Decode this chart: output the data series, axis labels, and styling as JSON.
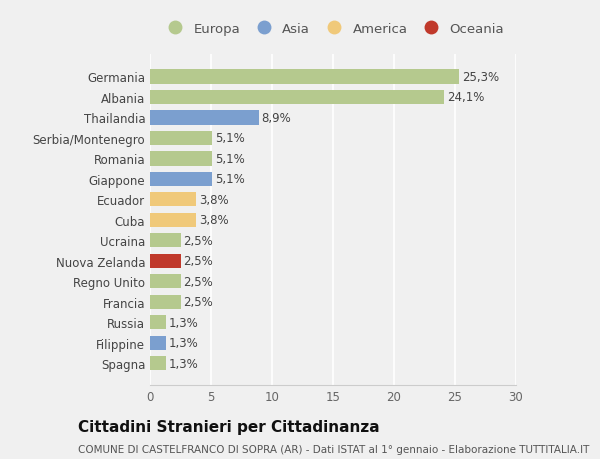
{
  "categories": [
    "Germania",
    "Albania",
    "Thailandia",
    "Serbia/Montenegro",
    "Romania",
    "Giappone",
    "Ecuador",
    "Cuba",
    "Ucraina",
    "Nuova Zelanda",
    "Regno Unito",
    "Francia",
    "Russia",
    "Filippine",
    "Spagna"
  ],
  "values": [
    25.3,
    24.1,
    8.9,
    5.1,
    5.1,
    5.1,
    3.8,
    3.8,
    2.5,
    2.5,
    2.5,
    2.5,
    1.3,
    1.3,
    1.3
  ],
  "labels": [
    "25,3%",
    "24,1%",
    "8,9%",
    "5,1%",
    "5,1%",
    "5,1%",
    "3,8%",
    "3,8%",
    "2,5%",
    "2,5%",
    "2,5%",
    "2,5%",
    "1,3%",
    "1,3%",
    "1,3%"
  ],
  "colors": [
    "#b5c98e",
    "#b5c98e",
    "#7b9fcf",
    "#b5c98e",
    "#b5c98e",
    "#7b9fcf",
    "#f0c97a",
    "#f0c97a",
    "#b5c98e",
    "#c0392b",
    "#b5c98e",
    "#b5c98e",
    "#b5c98e",
    "#7b9fcf",
    "#b5c98e"
  ],
  "legend": [
    {
      "label": "Europa",
      "color": "#b5c98e"
    },
    {
      "label": "Asia",
      "color": "#7b9fcf"
    },
    {
      "label": "America",
      "color": "#f0c97a"
    },
    {
      "label": "Oceania",
      "color": "#c0392b"
    }
  ],
  "xlim": [
    0,
    30
  ],
  "xticks": [
    0,
    5,
    10,
    15,
    20,
    25,
    30
  ],
  "title": "Cittadini Stranieri per Cittadinanza",
  "subtitle": "COMUNE DI CASTELFRANCO DI SOPRA (AR) - Dati ISTAT al 1° gennaio - Elaborazione TUTTITALIA.IT",
  "bg_color": "#f0f0f0",
  "plot_bg_color": "#f0f0f0",
  "grid_color": "#ffffff",
  "bar_height": 0.7,
  "label_fontsize": 8.5,
  "title_fontsize": 11,
  "subtitle_fontsize": 7.5,
  "tick_fontsize": 8.5,
  "legend_fontsize": 9.5
}
